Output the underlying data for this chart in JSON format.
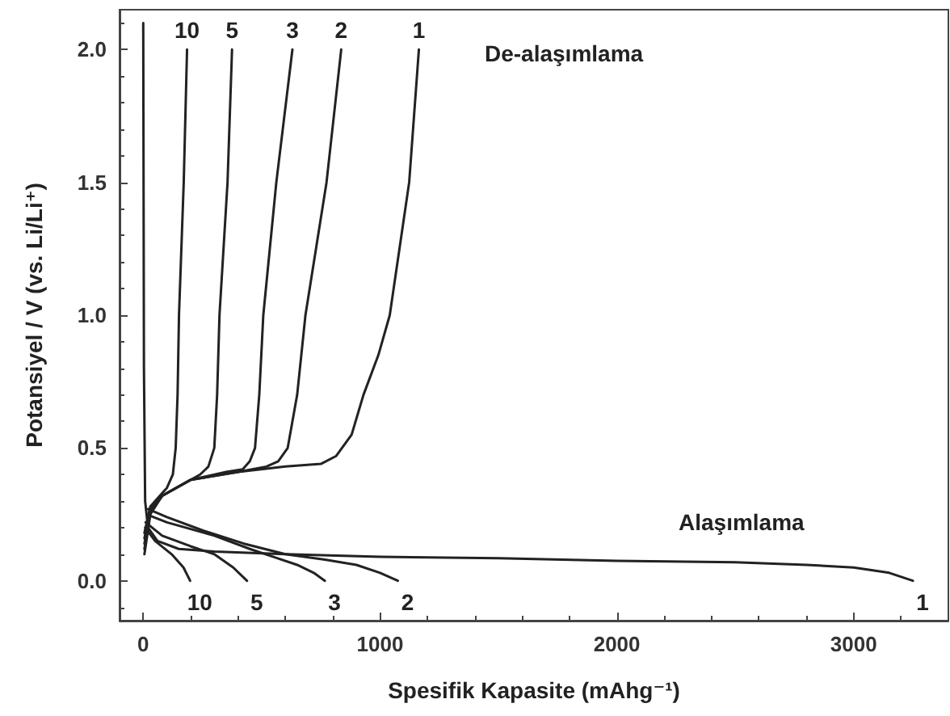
{
  "chart_data": {
    "type": "line",
    "xlabel": "Spesifik Kapasite (mAhg⁻¹)",
    "ylabel": "Potansiyel / V (vs. Li/Li⁺)",
    "xlim": [
      -100,
      3400
    ],
    "xticks": [
      0,
      1000,
      2000,
      3000
    ],
    "ylim": [
      -0.15,
      2.15
    ],
    "yticks": [
      {
        "value": 0,
        "label": "0.0"
      },
      {
        "value": 0.5,
        "label": "0.5"
      },
      {
        "value": 1,
        "label": "1.0"
      },
      {
        "value": 1.5,
        "label": "1.5"
      },
      {
        "value": 2,
        "label": "2.0"
      }
    ],
    "grid": false,
    "legend": false,
    "marker": "none",
    "line_style": "solid",
    "series": [
      {
        "name": "1",
        "color": "#222222",
        "x": [
          0,
          3,
          8,
          20,
          60,
          150,
          300,
          600,
          1000,
          1500,
          2000,
          2500,
          2800,
          3000,
          3150,
          3250
        ],
        "values": [
          2.1,
          0.8,
          0.3,
          0.2,
          0.15,
          0.12,
          0.11,
          0.1,
          0.09,
          0.085,
          0.075,
          0.07,
          0.06,
          0.05,
          0.03,
          0.0
        ]
      },
      {
        "name": "2",
        "color": "#222222",
        "x": [
          20,
          100,
          250,
          425,
          600,
          767,
          900,
          1000,
          1075
        ],
        "values": [
          0.27,
          0.24,
          0.19,
          0.14,
          0.1,
          0.08,
          0.06,
          0.03,
          0.0
        ]
      },
      {
        "name": "3",
        "color": "#222222",
        "x": [
          15,
          100,
          300,
          450,
          550,
          650,
          720,
          767
        ],
        "values": [
          0.25,
          0.22,
          0.17,
          0.12,
          0.09,
          0.06,
          0.03,
          0.0
        ]
      },
      {
        "name": "5",
        "color": "#222222",
        "x": [
          10,
          80,
          200,
          300,
          380,
          438
        ],
        "values": [
          0.22,
          0.17,
          0.13,
          0.1,
          0.05,
          0.0
        ]
      },
      {
        "name": "10",
        "color": "#222222",
        "x": [
          8,
          50,
          120,
          170,
          198
        ],
        "values": [
          0.2,
          0.15,
          0.1,
          0.05,
          0.0
        ]
      },
      {
        "name": "1",
        "color": "#222222",
        "x": [
          5,
          30,
          80,
          200,
          400,
          600,
          750,
          815,
          880,
          930,
          993,
          1041,
          1123,
          1164
        ],
        "values": [
          0.1,
          0.25,
          0.32,
          0.38,
          0.41,
          0.43,
          0.44,
          0.47,
          0.55,
          0.7,
          0.85,
          1.0,
          1.5,
          2.0
        ]
      },
      {
        "name": "2",
        "color": "#222222",
        "x": [
          5,
          30,
          80,
          200,
          400,
          520,
          570,
          610,
          650,
          685,
          774,
          836
        ],
        "values": [
          0.12,
          0.26,
          0.32,
          0.38,
          0.41,
          0.43,
          0.45,
          0.5,
          0.7,
          1.0,
          1.5,
          2.0
        ]
      },
      {
        "name": "3",
        "color": "#222222",
        "x": [
          5,
          30,
          80,
          200,
          350,
          420,
          450,
          472,
          490,
          507,
          562,
          630
        ],
        "values": [
          0.14,
          0.27,
          0.32,
          0.38,
          0.41,
          0.42,
          0.45,
          0.5,
          0.7,
          1.0,
          1.5,
          2.0
        ]
      },
      {
        "name": "5",
        "color": "#222222",
        "x": [
          5,
          30,
          80,
          180,
          240,
          275,
          300,
          312,
          322,
          356,
          375
        ],
        "values": [
          0.16,
          0.27,
          0.32,
          0.37,
          0.4,
          0.43,
          0.5,
          0.7,
          1.0,
          1.5,
          2.0
        ]
      },
      {
        "name": "10",
        "color": "#222222",
        "x": [
          5,
          30,
          70,
          100,
          125,
          137,
          145,
          151,
          171,
          185
        ],
        "values": [
          0.18,
          0.28,
          0.32,
          0.35,
          0.4,
          0.5,
          0.7,
          1.0,
          1.5,
          2.0
        ]
      }
    ],
    "annotations": [
      "De-alaşımlama",
      "Alaşımlama"
    ]
  }
}
